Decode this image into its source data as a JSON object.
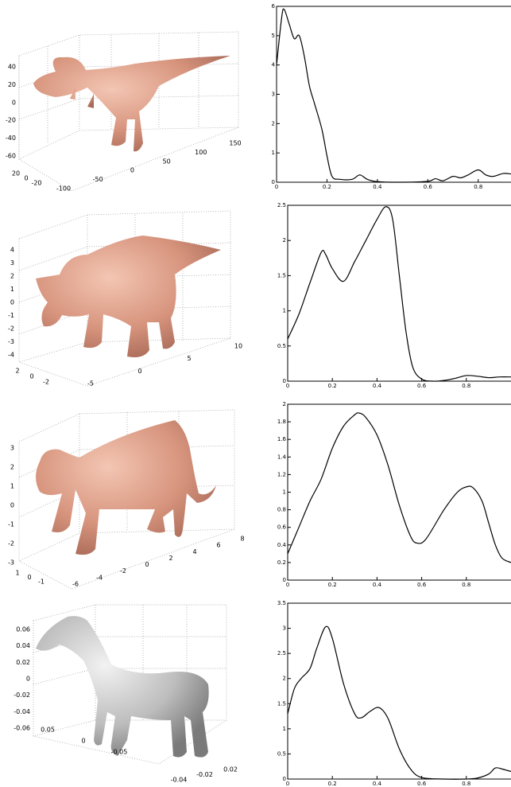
{
  "models": [
    {
      "z_ticks": [
        40,
        20,
        0,
        -20,
        -40,
        -60
      ],
      "y_ticks": [
        20,
        0,
        -20
      ],
      "x_ticks": [
        -100,
        -50,
        0,
        50,
        100,
        150
      ]
    },
    {
      "z_ticks": [
        4,
        3,
        2,
        1,
        0,
        -1,
        -2,
        -3,
        -4
      ],
      "y_ticks": [
        2,
        0,
        -2
      ],
      "x_ticks": [
        -5,
        0,
        5,
        10
      ]
    },
    {
      "z_ticks": [
        3,
        2,
        1,
        0,
        -1,
        -2,
        -3
      ],
      "y_ticks": [
        1,
        0,
        -1
      ],
      "x_ticks": [
        -6,
        -4,
        -2,
        0,
        2,
        4,
        6,
        8
      ]
    },
    {
      "z_ticks": [
        0.06,
        0.04,
        0.02,
        0,
        -0.02,
        -0.04,
        -0.06
      ],
      "y_ticks": [
        0.05,
        0,
        -0.05
      ],
      "x_ticks": [
        -0.04,
        -0.02,
        0.02
      ]
    }
  ],
  "chart_data": [
    {
      "type": "line",
      "x": [
        0,
        0.02,
        0.03,
        0.05,
        0.07,
        0.09,
        0.11,
        0.13,
        0.15,
        0.18,
        0.2,
        0.22,
        0.25,
        0.3,
        0.33,
        0.36,
        0.4,
        0.5,
        0.6,
        0.63,
        0.66,
        0.7,
        0.73,
        0.76,
        0.8,
        0.83,
        0.86,
        0.9,
        0.93
      ],
      "series": [
        {
          "color": "#000000",
          "values": [
            4.0,
            5.6,
            5.9,
            5.4,
            4.9,
            5.0,
            4.3,
            3.3,
            2.7,
            1.8,
            0.9,
            0.2,
            0.1,
            0.1,
            0.25,
            0.1,
            0.02,
            0,
            0.03,
            0.12,
            0.05,
            0.2,
            0.15,
            0.25,
            0.42,
            0.25,
            0.2,
            0.3,
            0.28
          ]
        }
      ],
      "xlim": [
        0,
        0.93
      ],
      "xticks": [
        0,
        0.2,
        0.4,
        0.6,
        0.8
      ],
      "ylim": [
        0,
        6
      ],
      "yticks": [
        0,
        1,
        2,
        3,
        4,
        5,
        6
      ]
    },
    {
      "type": "line",
      "x": [
        0,
        0.05,
        0.1,
        0.15,
        0.17,
        0.2,
        0.25,
        0.3,
        0.35,
        0.4,
        0.44,
        0.47,
        0.5,
        0.53,
        0.56,
        0.6,
        0.65,
        0.7,
        0.75,
        0.8,
        0.85,
        0.9,
        0.95,
        1.0
      ],
      "series": [
        {
          "color": "#000000",
          "values": [
            0.6,
            0.95,
            1.4,
            1.83,
            1.8,
            1.6,
            1.42,
            1.7,
            2.0,
            2.3,
            2.48,
            2.3,
            1.5,
            0.7,
            0.2,
            0.03,
            0,
            0.01,
            0.04,
            0.08,
            0.07,
            0.05,
            0.06,
            0.06
          ]
        }
      ],
      "xlim": [
        0,
        1.0
      ],
      "xticks": [
        0,
        0.2,
        0.4,
        0.6,
        0.8
      ],
      "ylim": [
        0,
        2.5
      ],
      "yticks": [
        0,
        0.5,
        1,
        1.5,
        2,
        2.5
      ]
    },
    {
      "type": "line",
      "x": [
        0,
        0.05,
        0.1,
        0.15,
        0.2,
        0.25,
        0.3,
        0.32,
        0.35,
        0.4,
        0.45,
        0.5,
        0.55,
        0.58,
        0.62,
        0.7,
        0.76,
        0.8,
        0.83,
        0.87,
        0.9,
        0.93,
        0.96,
        1.0
      ],
      "series": [
        {
          "color": "#000000",
          "values": [
            0.3,
            0.6,
            0.9,
            1.15,
            1.5,
            1.75,
            1.88,
            1.9,
            1.85,
            1.65,
            1.3,
            0.85,
            0.5,
            0.42,
            0.47,
            0.8,
            1.0,
            1.06,
            1.05,
            0.9,
            0.65,
            0.4,
            0.25,
            0.2
          ]
        }
      ],
      "xlim": [
        0,
        1.0
      ],
      "xticks": [
        0,
        0.2,
        0.4,
        0.6,
        0.8
      ],
      "ylim": [
        0,
        2
      ],
      "yticks": [
        0,
        0.2,
        0.4,
        0.6,
        0.8,
        1,
        1.2,
        1.4,
        1.6,
        1.8,
        2
      ]
    },
    {
      "type": "line",
      "x": [
        0,
        0.03,
        0.06,
        0.1,
        0.13,
        0.17,
        0.2,
        0.25,
        0.3,
        0.33,
        0.37,
        0.41,
        0.45,
        0.5,
        0.55,
        0.6,
        0.7,
        0.8,
        0.85,
        0.9,
        0.93,
        0.96,
        1.0
      ],
      "series": [
        {
          "color": "#000000",
          "values": [
            1.3,
            1.8,
            2.0,
            2.2,
            2.6,
            3.03,
            2.8,
            1.9,
            1.3,
            1.22,
            1.35,
            1.42,
            1.2,
            0.6,
            0.2,
            0.03,
            0,
            0,
            0.02,
            0.1,
            0.22,
            0.2,
            0.15
          ]
        }
      ],
      "xlim": [
        0,
        1.0
      ],
      "xticks": [
        0,
        0.2,
        0.4,
        0.6,
        0.8
      ],
      "ylim": [
        0,
        3.5
      ],
      "yticks": [
        0,
        0.5,
        1,
        1.5,
        2,
        2.5,
        3,
        3.5
      ]
    }
  ]
}
